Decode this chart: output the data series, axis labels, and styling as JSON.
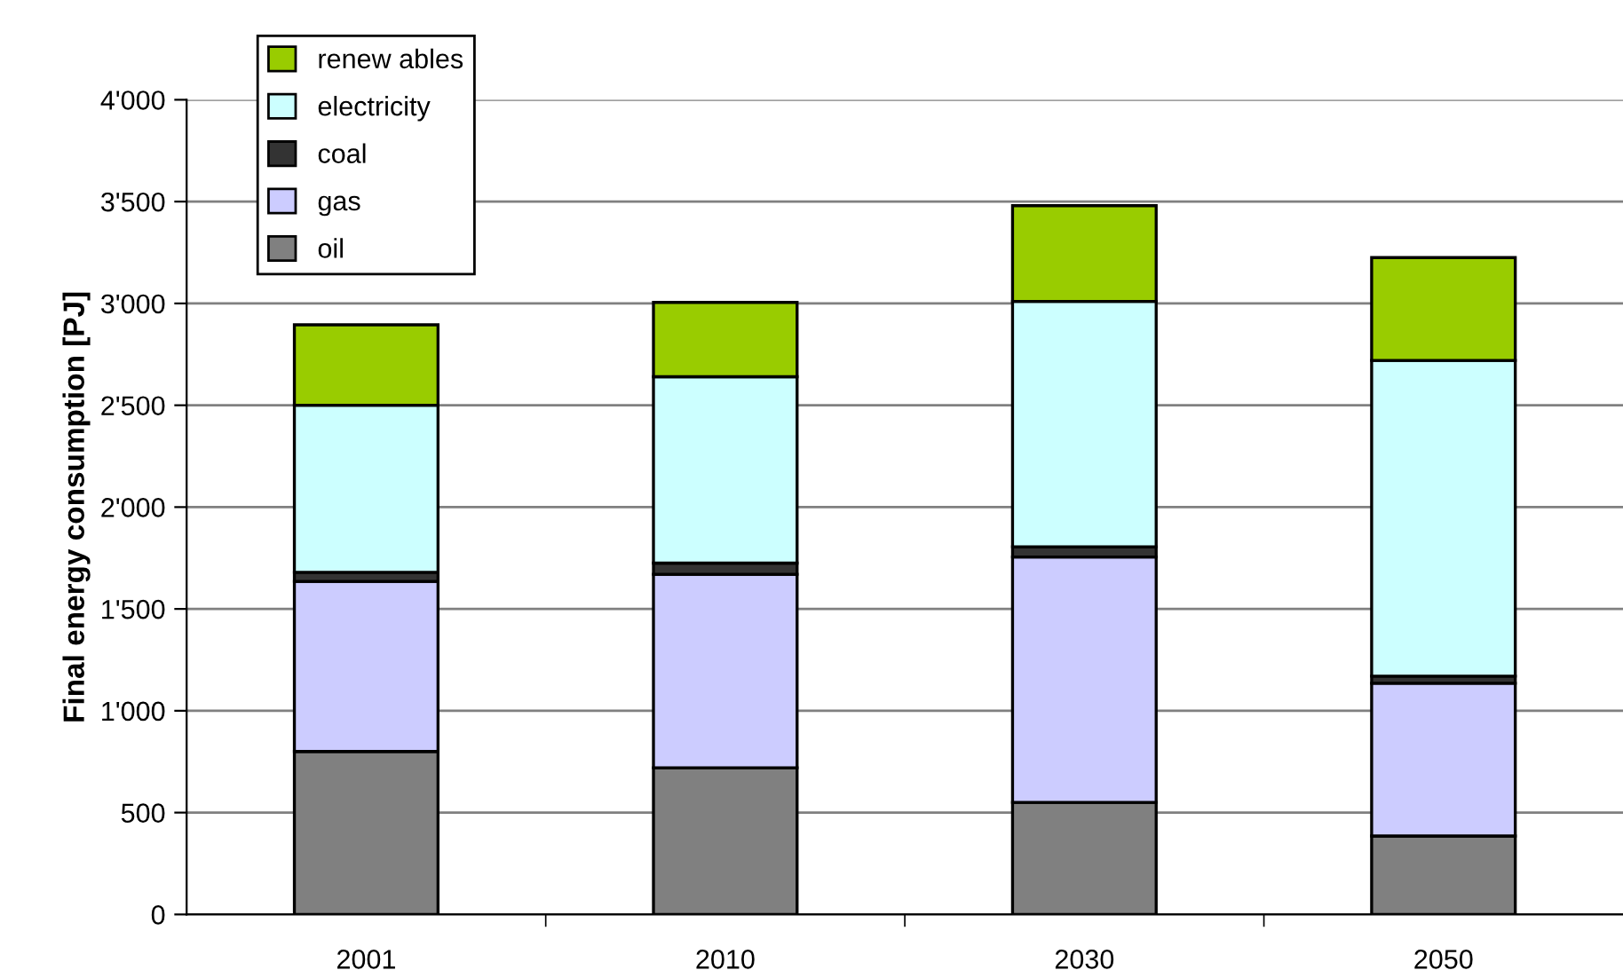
{
  "chart_data": {
    "type": "bar",
    "stacked": true,
    "ylabel": "Final energy consumption [PJ]",
    "categories": [
      "2001",
      "2010",
      "2030",
      "2050"
    ],
    "series": [
      {
        "name": "oil",
        "color": "#808080",
        "values": [
          800,
          720,
          550,
          385
        ]
      },
      {
        "name": "gas",
        "color": "#ccccff",
        "values": [
          835,
          950,
          1205,
          750
        ]
      },
      {
        "name": "coal",
        "color": "#333333",
        "values": [
          45,
          55,
          50,
          35
        ]
      },
      {
        "name": "electricity",
        "color": "#ccffff",
        "values": [
          820,
          915,
          1205,
          1550
        ]
      },
      {
        "name": "renew ables",
        "color": "#99cc00",
        "values": [
          395,
          365,
          470,
          505
        ]
      }
    ],
    "ylim": [
      0,
      4000
    ],
    "yticks": [
      0,
      500,
      {
        "value": 1000,
        "label": "1'000"
      },
      {
        "value": 1500,
        "label": "1'500"
      },
      {
        "value": 2000,
        "label": "2'000"
      },
      {
        "value": 2500,
        "label": "2'500"
      },
      {
        "value": 3000,
        "label": "3'000"
      },
      {
        "value": 3500,
        "label": "3'500"
      },
      {
        "value": 4000,
        "label": "4'000"
      }
    ],
    "grid": "y",
    "legend": "top left"
  }
}
